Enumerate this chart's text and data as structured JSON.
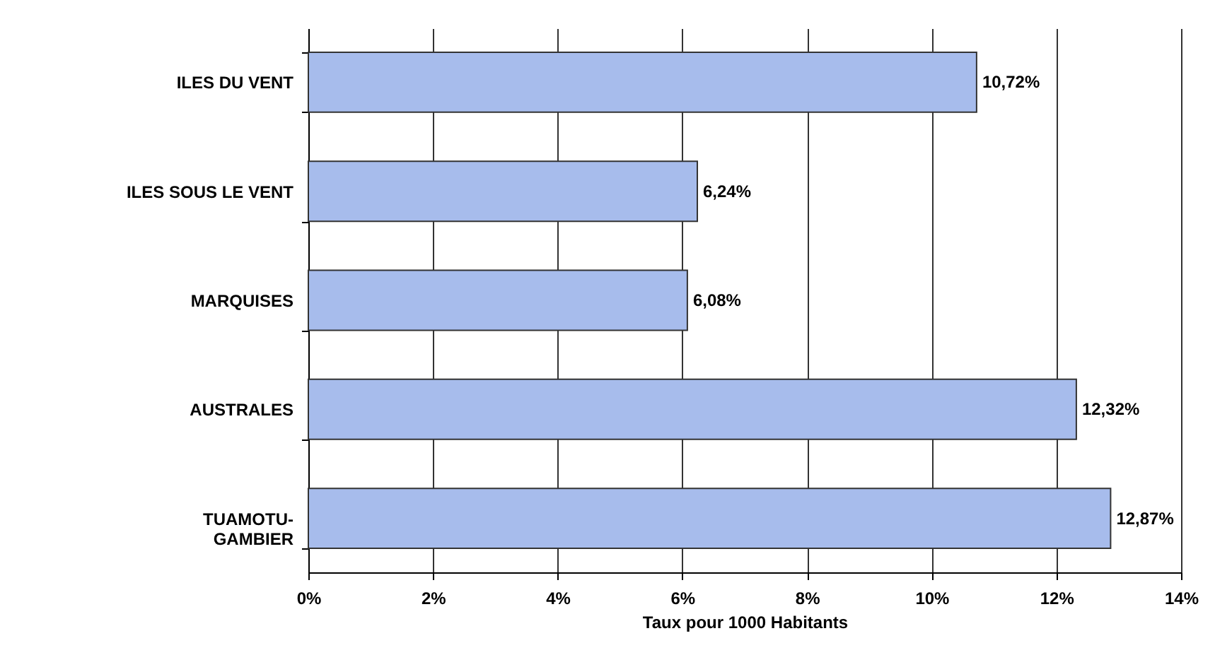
{
  "chart_data": {
    "type": "bar",
    "orientation": "horizontal",
    "xlabel": "Taux pour 1000 Habitants",
    "categories": [
      "ILES DU VENT",
      "ILES SOUS LE VENT",
      "MARQUISES",
      "AUSTRALES",
      "TUAMOTU-\nGAMBIER"
    ],
    "values": [
      10.72,
      6.24,
      6.08,
      12.32,
      12.87
    ],
    "value_labels": [
      "10,72%",
      "6,24%",
      "6,08%",
      "12,32%",
      "12,87%"
    ],
    "color": "#a7bcec",
    "xlim": [
      0,
      14
    ],
    "xticks": [
      {
        "value": 0,
        "label": "0%"
      },
      {
        "value": 2,
        "label": "2%"
      },
      {
        "value": 4,
        "label": "4%"
      },
      {
        "value": 6,
        "label": "6%"
      },
      {
        "value": 8,
        "label": "8%"
      },
      {
        "value": 10,
        "label": "10%"
      },
      {
        "value": 12,
        "label": "12%"
      },
      {
        "value": 14,
        "label": "14%"
      }
    ],
    "grid": "x"
  }
}
